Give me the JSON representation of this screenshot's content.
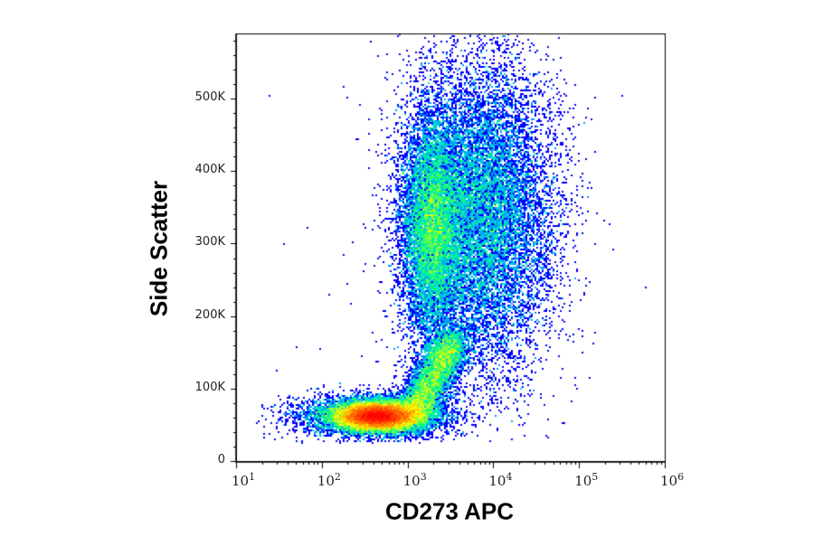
{
  "chart_data": {
    "type": "heatmap",
    "subtype": "flow-cytometry pseudocolor density dot plot",
    "xlabel": "CD273 APC",
    "ylabel": "Side Scatter",
    "x_scale": "log",
    "xlim": [
      10,
      1000000
    ],
    "ylim": [
      0,
      590000
    ],
    "x_ticks": [
      {
        "base": "10",
        "exp": "1"
      },
      {
        "base": "10",
        "exp": "2"
      },
      {
        "base": "10",
        "exp": "3"
      },
      {
        "base": "10",
        "exp": "4"
      },
      {
        "base": "10",
        "exp": "5"
      },
      {
        "base": "10",
        "exp": "6"
      }
    ],
    "y_ticks": [
      "0",
      "100K",
      "200K",
      "300K",
      "400K",
      "500K"
    ],
    "y_tick_values": [
      0,
      100000,
      200000,
      300000,
      400000,
      500000
    ],
    "colormap": [
      "#0000ff",
      "#00c0ff",
      "#00ff80",
      "#ffff00",
      "#ff8000",
      "#ff0000"
    ],
    "populations": [
      {
        "center_x": 450,
        "center_y": 62000,
        "density": "highest"
      },
      {
        "center_x": 2000,
        "center_y": 320000,
        "density": "medium"
      },
      {
        "center_x": 6000,
        "center_y": 330000,
        "density": "low",
        "spread": "broad"
      }
    ],
    "grid": false,
    "legend": "none"
  }
}
